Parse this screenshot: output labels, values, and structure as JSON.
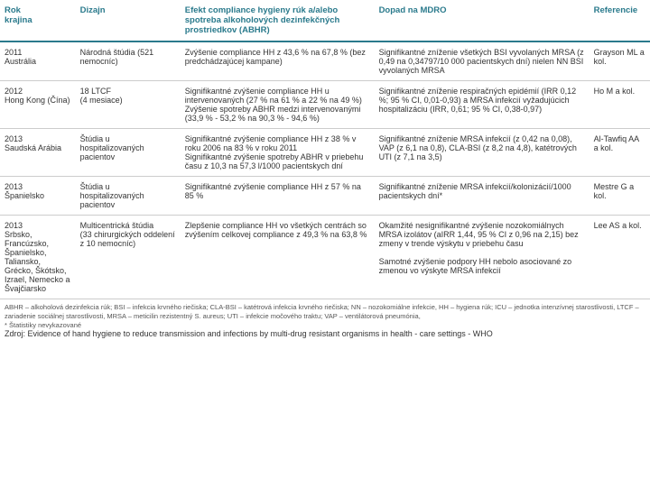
{
  "headers": {
    "col1": "Rok\nkrajina",
    "col2": "Dizajn",
    "col3": "Efekt compliance hygieny rúk a/alebo spotreba alkoholových dezinfekčných prostriedkov (ABHR)",
    "col4": "Dopad na MDRO",
    "col5": "Referencie"
  },
  "rows": [
    {
      "c1": "2011\nAustrália",
      "c2": "Národná štúdia (521 nemocníc)",
      "c3": "Zvýšenie compliance HH z 43,6 % na 67,8 % (bez predchádzajúcej kampane)",
      "c4": "Signifikantné zníženie všetkých BSI vyvolaných MRSA (z 0,49 na 0,34797/10 000 pacientskych dní) nielen NN BSI vyvolaných MRSA",
      "c5": "Grayson ML a kol."
    },
    {
      "c1": "2012\nHong Kong (Čína)",
      "c2": "18 LTCF\n(4 mesiace)",
      "c3": "Signifikantné zvýšenie compliance HH u intervenovaných (27 % na 61 % a 22 % na 49 %)\nZvýšenie spotreby ABHR medzi intervenovanými (33,9 % - 53,2 % na 90,3 % - 94,6 %)",
      "c4": "Signifikantné zníženie respiračných epidémií (IRR 0,12 %; 95 % CI, 0,01-0,93) a MRSA infekcií vyžadujúcich hospitalizáciu (IRR, 0,61; 95 % CI, 0,38-0,97)",
      "c5": "Ho M a kol."
    },
    {
      "c1": "2013\nSaudská Arábia",
      "c2": "Štúdia u hospitalizovaných pacientov",
      "c3": "Signifikantné zvýšenie compliance HH z 38 % v roku 2006 na 83 % v roku 2011\nSignifikantné zvýšenie spotreby ABHR v priebehu času z 10,3 na 57,3 l/1000 pacientskych dní",
      "c4": "Signifikantné zníženie MRSA infekcií (z 0,42 na 0,08), VAP (z 6,1 na 0,8), CLA-BSI (z 8,2 na 4,8), katétrových UTI (z 7,1 na 3,5)",
      "c5": "Al-Tawfiq AA a kol."
    },
    {
      "c1": "2013\nŠpanielsko",
      "c2": "Štúdia u hospitalizovaných pacientov",
      "c3": "Signifikantné zvýšenie compliance HH z 57 % na 85 %",
      "c4": "Signifikantné zníženie MRSA infekcií/kolonizácií/1000 pacientskych dní*",
      "c5": "Mestre G a kol."
    },
    {
      "c1": "2013\nSrbsko, Francúzsko, Španielsko, Taliansko, Grécko, Škótsko, Izrael, Nemecko a Švajčiarsko",
      "c2": "Multicentrická štúdia\n(33 chirurgických oddelení z 10 nemocníc)",
      "c3": "Zlepšenie compliance HH vo všetkých centrách so zvýšením celkovej compliance z 49,3 % na 63,8 %",
      "c4": "Okamžité nesignifikantné zvýšenie nozokomiálnych MRSA izolátov (aIRR 1,44, 95 % CI z 0,96 na 2,15) bez zmeny v trende výskytu v priebehu času\n\nSamotné zvýšenie podpory HH nebolo asociované zo zmenou vo výskyte MRSA infekcií",
      "c5": "Lee AS a kol."
    }
  ],
  "footnote": "ABHR – alkoholová dezinfekcia rúk; BSI – infekcia krvného riečiska; CLA-BSI – katétrová infekcia krvného riečiska; NN – nozokomiálne infekcie, HH – hygiena rúk; ICU – jednotka intenzívnej starostlivosti, LTCF – zariadenie sociálnej starostlivosti, MRSA – meticilin rezistentný S. aureus; UTI – infekcie močového traktu; VAP – ventilátorová pneumónia,\n* Štatistiky nevykazované",
  "source": "Zdroj: Evidence of hand hygiene to reduce transmission and infections by multi-drug resistant organisms in health - care settings - WHO"
}
